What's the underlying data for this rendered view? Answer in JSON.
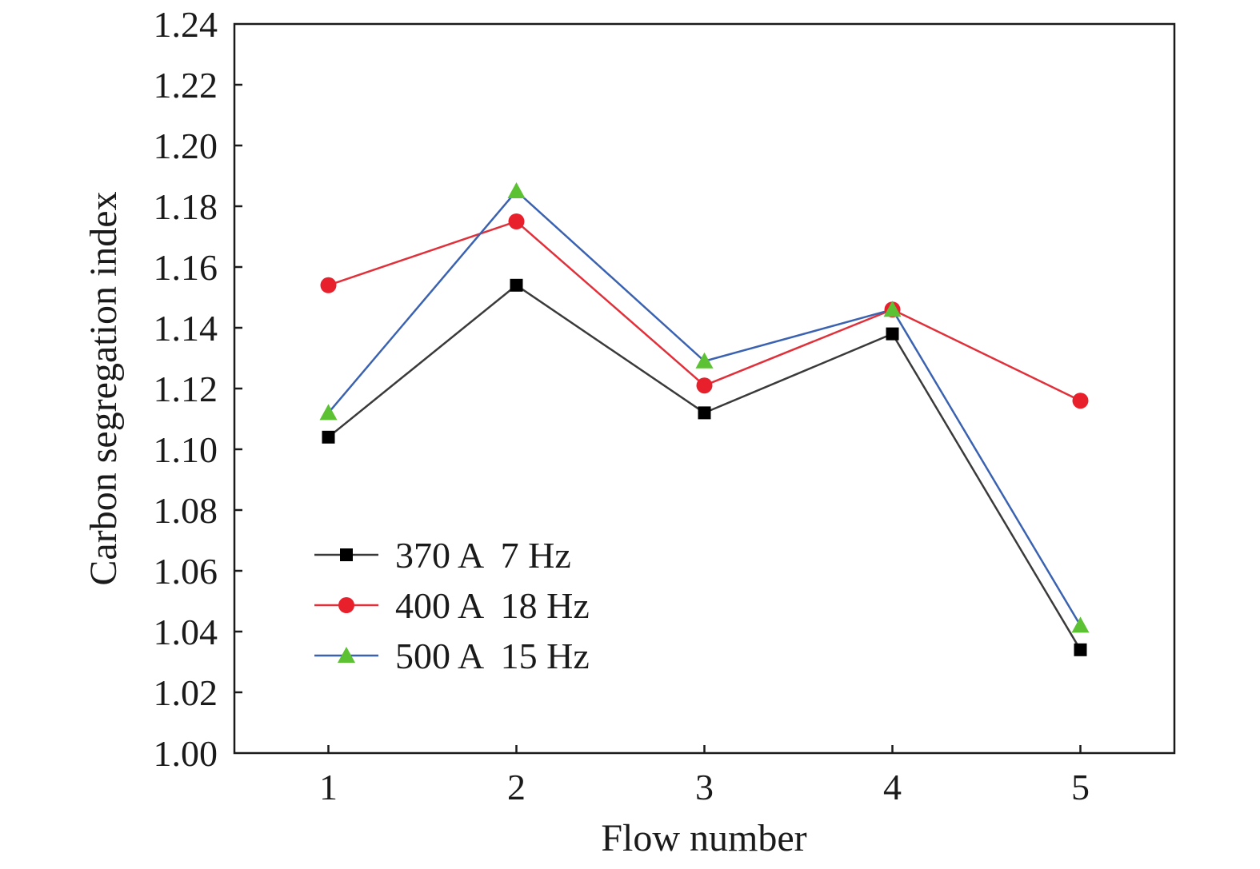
{
  "chart_data": {
    "type": "line",
    "xlabel": "Flow number",
    "ylabel": "Carbon segregation index",
    "x": [
      1,
      2,
      3,
      4,
      5
    ],
    "xlim": [
      0.5,
      5.5
    ],
    "ylim": [
      1.0,
      1.24
    ],
    "y_ticks": [
      "1.00",
      "1.02",
      "1.04",
      "1.06",
      "1.08",
      "1.10",
      "1.12",
      "1.14",
      "1.16",
      "1.18",
      "1.20",
      "1.22",
      "1.24"
    ],
    "x_ticks": [
      "1",
      "2",
      "3",
      "4",
      "5"
    ],
    "grid": false,
    "legend_position": "bottom-left",
    "series": [
      {
        "name": "370 A  7 Hz",
        "marker": "square",
        "line_color": "#3a3a3a",
        "marker_color": "#000000",
        "values": [
          1.104,
          1.154,
          1.112,
          1.138,
          1.034
        ]
      },
      {
        "name": "400 A  18 Hz",
        "marker": "circle",
        "line_color": "#e0303a",
        "marker_color": "#e8202c",
        "values": [
          1.154,
          1.175,
          1.121,
          1.146,
          1.116
        ]
      },
      {
        "name": "500 A  15 Hz",
        "marker": "triangle",
        "line_color": "#3a62b0",
        "marker_color": "#5cc234",
        "values": [
          1.112,
          1.185,
          1.129,
          1.146,
          1.042
        ]
      }
    ]
  }
}
